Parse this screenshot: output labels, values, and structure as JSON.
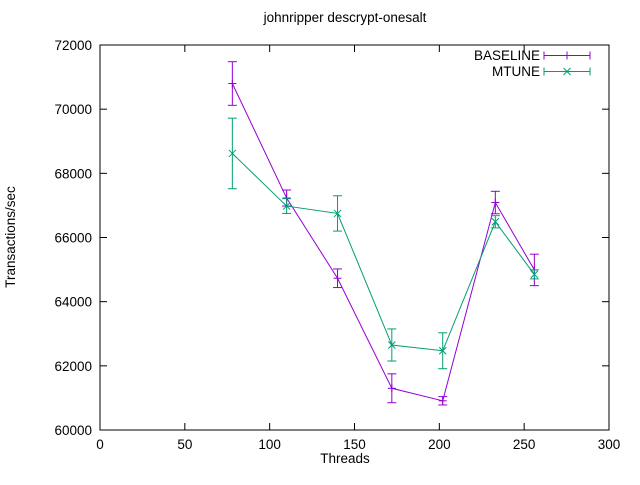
{
  "figure": {
    "background": "#ffffff",
    "axis_color": "#000000"
  },
  "chart_data": {
    "type": "line",
    "title": "johnripper descrypt-onesalt",
    "xlabel": "Threads",
    "ylabel": "Transactions/sec",
    "xlim": [
      0,
      300
    ],
    "ylim": [
      60000,
      72000
    ],
    "xticks": [
      0,
      50,
      100,
      150,
      200,
      250,
      300
    ],
    "yticks": [
      60000,
      62000,
      64000,
      66000,
      68000,
      70000,
      72000
    ],
    "grid": false,
    "legend": {
      "position": "top-right-inside",
      "entries": [
        "BASELINE",
        "MTUNE"
      ]
    },
    "x": [
      78,
      110,
      140,
      172,
      202,
      233,
      256
    ],
    "series": [
      {
        "name": "BASELINE",
        "color": "#9400d3",
        "marker": "plus",
        "style": "yerrorbars-with-line",
        "values": [
          70800,
          67230,
          64730,
          61300,
          60910,
          67090,
          64990
        ],
        "yerr": [
          680,
          250,
          290,
          450,
          130,
          350,
          490
        ]
      },
      {
        "name": "MTUNE",
        "color": "#009e73",
        "marker": "x",
        "style": "yerrorbars-with-line",
        "values": [
          68620,
          66980,
          66750,
          62650,
          62470,
          66490,
          64850
        ],
        "yerr": [
          1100,
          230,
          550,
          500,
          560,
          190,
          140
        ]
      }
    ]
  }
}
